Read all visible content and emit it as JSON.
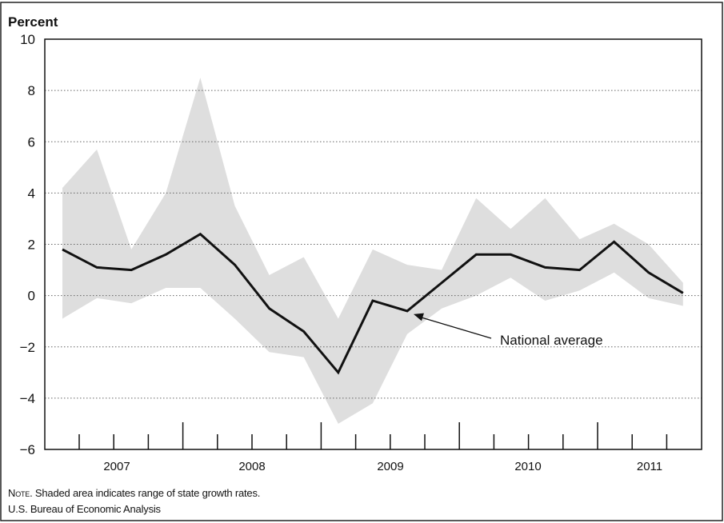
{
  "chart_data": {
    "type": "line",
    "ylabel": "Percent",
    "ylim": [
      -6,
      10
    ],
    "yticks": [
      -6,
      -4,
      -2,
      0,
      2,
      4,
      6,
      8,
      10
    ],
    "grid": "horizontal dotted",
    "x_axis": {
      "unit": "quarter",
      "year_labels": [
        "2007",
        "2008",
        "2009",
        "2010",
        "2011"
      ]
    },
    "x": [
      "2006Q4",
      "2007Q1",
      "2007Q2",
      "2007Q3",
      "2007Q4",
      "2008Q1",
      "2008Q2",
      "2008Q3",
      "2008Q4",
      "2009Q1",
      "2009Q2",
      "2009Q3",
      "2009Q4",
      "2010Q1",
      "2010Q2",
      "2010Q3",
      "2010Q4",
      "2011Q1",
      "2011Q2"
    ],
    "series": [
      {
        "name": "National average",
        "values": [
          1.8,
          1.1,
          1.0,
          1.6,
          2.4,
          1.2,
          -0.5,
          -1.4,
          -3.0,
          -0.2,
          -0.6,
          0.5,
          1.6,
          1.6,
          1.1,
          1.0,
          2.1,
          0.9,
          0.1
        ]
      }
    ],
    "range_band": {
      "high": [
        4.2,
        5.7,
        1.8,
        4.0,
        8.5,
        3.5,
        0.8,
        1.5,
        -0.9,
        1.8,
        1.2,
        1.0,
        3.8,
        2.6,
        3.8,
        2.2,
        2.8,
        2.0,
        0.5
      ],
      "low": [
        -0.9,
        -0.1,
        -0.3,
        0.3,
        0.3,
        -0.9,
        -2.2,
        -2.4,
        -5.0,
        -4.2,
        -1.5,
        -0.5,
        0.0,
        0.7,
        -0.2,
        0.2,
        0.9,
        -0.1,
        -0.4
      ],
      "color": "#dedede"
    },
    "annotation": {
      "text": "National average",
      "points_to": "2009Q2"
    },
    "colors": {
      "line": "#111111",
      "band": "#dedede",
      "grid": "#666666"
    }
  },
  "footer": {
    "note_label": "Note.",
    "note_text": " Shaded area indicates range of state growth rates.",
    "source": "U.S. Bureau of Economic Analysis"
  }
}
